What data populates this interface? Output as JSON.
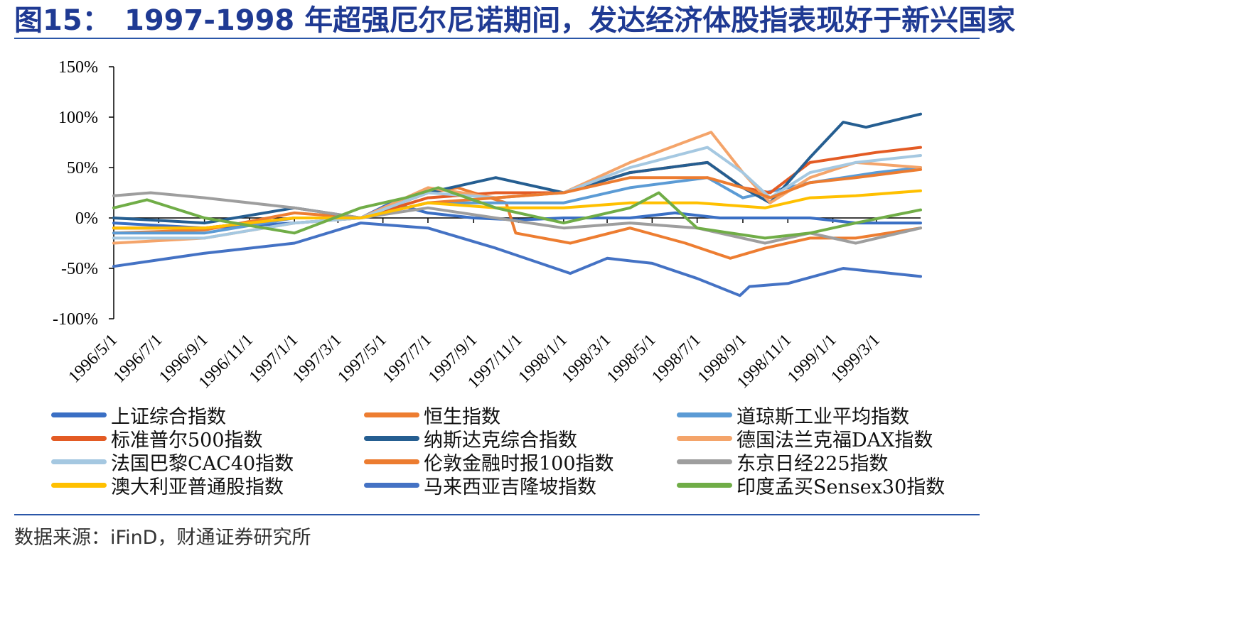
{
  "title": {
    "prefix": "图15：",
    "text": "1997-1998 年超强厄尔尼诺期间，发达经济体股指表现好于新兴国家"
  },
  "source": "数据来源：iFinD，财通证券研究所",
  "colors": {
    "title": "#1f3a93",
    "rule": "#2a56a8"
  },
  "chart_data": {
    "type": "line",
    "ylim": [
      -1.0,
      1.5
    ],
    "y_ticks": [
      1.5,
      1.0,
      0.5,
      0.0,
      -0.5,
      -1.0
    ],
    "y_tick_labels": [
      "150%",
      "100%",
      "50%",
      "0%",
      "-50%",
      "-100%"
    ],
    "x_start": "1996/5/1",
    "x_end": "1999/4/30",
    "x_tick_labels": [
      "1996/5/1",
      "1996/7/1",
      "1996/9/1",
      "1996/11/1",
      "1997/1/1",
      "1997/3/1",
      "1997/5/1",
      "1997/7/1",
      "1997/9/1",
      "1997/11/1",
      "1998/1/1",
      "1998/3/1",
      "1998/5/1",
      "1998/7/1",
      "1998/9/1",
      "1998/11/1",
      "1999/1/1",
      "1999/3/1"
    ],
    "legend_position": "bottom",
    "series": [
      {
        "name": "上证综合指数",
        "color": "#3a6fc4",
        "x": [
          "1996/5/1",
          "1996/9/1",
          "1997/1/1",
          "1997/4/1",
          "1997/5/12",
          "1997/7/1",
          "1997/9/1",
          "1997/11/1",
          "1998/1/1",
          "1998/4/1",
          "1998/6/1",
          "1998/8/1",
          "1998/10/1",
          "1998/12/1",
          "1999/2/1",
          "1999/4/30"
        ],
        "values": [
          -0.05,
          -0.1,
          -0.05,
          0.0,
          0.15,
          0.05,
          0.0,
          -0.02,
          0.0,
          0.0,
          0.05,
          0.0,
          0.0,
          0.0,
          -0.05,
          -0.05
        ]
      },
      {
        "name": "恒生指数",
        "color": "#ed7d31",
        "x": [
          "1996/5/1",
          "1996/9/1",
          "1997/1/1",
          "1997/4/1",
          "1997/7/1",
          "1997/8/10",
          "1997/10/15",
          "1997/10/28",
          "1998/1/10",
          "1998/4/1",
          "1998/6/15",
          "1998/8/15",
          "1998/10/1",
          "1998/12/1",
          "1999/2/1",
          "1999/4/30"
        ],
        "values": [
          -0.15,
          -0.12,
          0.05,
          0.0,
          0.25,
          0.3,
          0.15,
          -0.15,
          -0.25,
          -0.1,
          -0.25,
          -0.4,
          -0.3,
          -0.2,
          -0.2,
          -0.1
        ]
      },
      {
        "name": "道琼斯工业平均指数",
        "color": "#5b9bd5",
        "x": [
          "1996/5/1",
          "1996/9/1",
          "1997/1/1",
          "1997/4/1",
          "1997/7/1",
          "1997/10/1",
          "1998/1/1",
          "1998/4/1",
          "1998/7/15",
          "1998/9/1",
          "1998/10/1",
          "1998/12/1",
          "1999/3/1",
          "1999/4/30"
        ],
        "values": [
          -0.15,
          -0.15,
          0.0,
          0.0,
          0.15,
          0.15,
          0.15,
          0.3,
          0.4,
          0.2,
          0.25,
          0.35,
          0.45,
          0.5
        ]
      },
      {
        "name": "标准普尔500指数",
        "color": "#e35b24",
        "x": [
          "1996/5/1",
          "1996/9/1",
          "1997/1/1",
          "1997/4/1",
          "1997/7/1",
          "1997/10/1",
          "1998/1/1",
          "1998/4/1",
          "1998/7/15",
          "1998/9/1",
          "1998/10/8",
          "1998/12/1",
          "1999/3/1",
          "1999/4/30"
        ],
        "values": [
          -0.1,
          -0.1,
          0.0,
          0.0,
          0.2,
          0.25,
          0.25,
          0.45,
          0.55,
          0.3,
          0.25,
          0.55,
          0.65,
          0.7
        ]
      },
      {
        "name": "纳斯达克综合指数",
        "color": "#255e91",
        "x": [
          "1996/5/1",
          "1996/9/1",
          "1997/1/1",
          "1997/4/1",
          "1997/7/1",
          "1997/10/1",
          "1998/1/1",
          "1998/4/1",
          "1998/7/15",
          "1998/9/1",
          "1998/10/8",
          "1998/12/1",
          "1999/1/15",
          "1999/2/15",
          "1999/4/30"
        ],
        "values": [
          0.0,
          -0.05,
          0.1,
          0.0,
          0.25,
          0.4,
          0.25,
          0.45,
          0.55,
          0.3,
          0.15,
          0.6,
          0.95,
          0.9,
          1.03
        ]
      },
      {
        "name": "德国法兰克福DAX指数",
        "color": "#f4a46a",
        "x": [
          "1996/5/1",
          "1996/9/1",
          "1997/1/1",
          "1997/4/1",
          "1997/7/1",
          "1997/10/1",
          "1998/1/1",
          "1998/4/1",
          "1998/7/20",
          "1998/9/1",
          "1998/10/8",
          "1998/12/1",
          "1999/2/1",
          "1999/4/30"
        ],
        "values": [
          -0.25,
          -0.2,
          -0.05,
          0.0,
          0.3,
          0.2,
          0.25,
          0.55,
          0.85,
          0.45,
          0.15,
          0.4,
          0.55,
          0.5
        ]
      },
      {
        "name": "法国巴黎CAC40指数",
        "color": "#a5c8e1",
        "x": [
          "1996/5/1",
          "1996/9/1",
          "1997/1/1",
          "1997/4/1",
          "1997/7/1",
          "1997/10/1",
          "1998/1/1",
          "1998/4/1",
          "1998/7/15",
          "1998/9/1",
          "1998/10/8",
          "1998/12/1",
          "1999/2/1",
          "1999/4/30"
        ],
        "values": [
          -0.2,
          -0.2,
          -0.05,
          0.0,
          0.25,
          0.2,
          0.25,
          0.5,
          0.7,
          0.45,
          0.2,
          0.45,
          0.55,
          0.62
        ]
      },
      {
        "name": "伦敦金融时报100指数",
        "color": "#ec7c30",
        "x": [
          "1996/5/1",
          "1996/9/1",
          "1997/1/1",
          "1997/4/1",
          "1997/7/1",
          "1997/10/1",
          "1998/1/1",
          "1998/4/1",
          "1998/7/15",
          "1998/9/1",
          "1998/10/8",
          "1998/12/1",
          "1999/2/1",
          "1999/4/30"
        ],
        "values": [
          -0.1,
          -0.1,
          0.0,
          0.0,
          0.15,
          0.2,
          0.25,
          0.4,
          0.4,
          0.3,
          0.2,
          0.35,
          0.4,
          0.48
        ]
      },
      {
        "name": "东京日经225指数",
        "color": "#9e9e9e",
        "x": [
          "1996/5/1",
          "1996/6/20",
          "1996/9/1",
          "1997/1/1",
          "1997/4/1",
          "1997/7/1",
          "1997/10/1",
          "1998/1/1",
          "1998/4/1",
          "1998/7/1",
          "1998/10/1",
          "1998/12/1",
          "1999/2/1",
          "1999/4/30"
        ],
        "values": [
          0.22,
          0.25,
          0.2,
          0.1,
          0.0,
          0.1,
          0.0,
          -0.1,
          -0.05,
          -0.1,
          -0.25,
          -0.15,
          -0.25,
          -0.1
        ]
      },
      {
        "name": "澳大利亚普通股指数",
        "color": "#ffc000",
        "x": [
          "1996/5/1",
          "1996/9/1",
          "1997/1/1",
          "1997/4/1",
          "1997/7/1",
          "1997/10/1",
          "1998/1/1",
          "1998/4/1",
          "1998/7/1",
          "1998/10/1",
          "1998/12/1",
          "1999/2/1",
          "1999/4/30"
        ],
        "values": [
          -0.1,
          -0.1,
          0.0,
          0.0,
          0.15,
          0.1,
          0.1,
          0.15,
          0.15,
          0.1,
          0.2,
          0.22,
          0.27
        ]
      },
      {
        "name": "马来西亚吉隆坡指数",
        "color": "#4472c4",
        "x": [
          "1996/5/1",
          "1996/9/1",
          "1997/1/1",
          "1997/4/1",
          "1997/7/1",
          "1997/10/1",
          "1998/1/10",
          "1998/3/1",
          "1998/5/1",
          "1998/7/1",
          "1998/8/28",
          "1998/9/10",
          "1998/11/1",
          "1999/1/15",
          "1999/4/30"
        ],
        "values": [
          -0.48,
          -0.35,
          -0.25,
          -0.05,
          -0.1,
          -0.3,
          -0.55,
          -0.4,
          -0.45,
          -0.6,
          -0.77,
          -0.68,
          -0.65,
          -0.5,
          -0.58
        ]
      },
      {
        "name": "印度孟买Sensex30指数",
        "color": "#70ad47",
        "x": [
          "1996/5/1",
          "1996/6/15",
          "1996/9/1",
          "1997/1/1",
          "1997/4/1",
          "1997/6/1",
          "1997/7/15",
          "1997/10/1",
          "1998/1/1",
          "1998/4/1",
          "1998/5/10",
          "1998/7/1",
          "1998/10/1",
          "1998/12/1",
          "1999/2/1",
          "1999/4/30"
        ],
        "values": [
          0.1,
          0.18,
          0.0,
          -0.15,
          0.1,
          0.2,
          0.3,
          0.1,
          -0.05,
          0.1,
          0.25,
          -0.1,
          -0.2,
          -0.15,
          -0.05,
          0.08
        ]
      }
    ]
  }
}
